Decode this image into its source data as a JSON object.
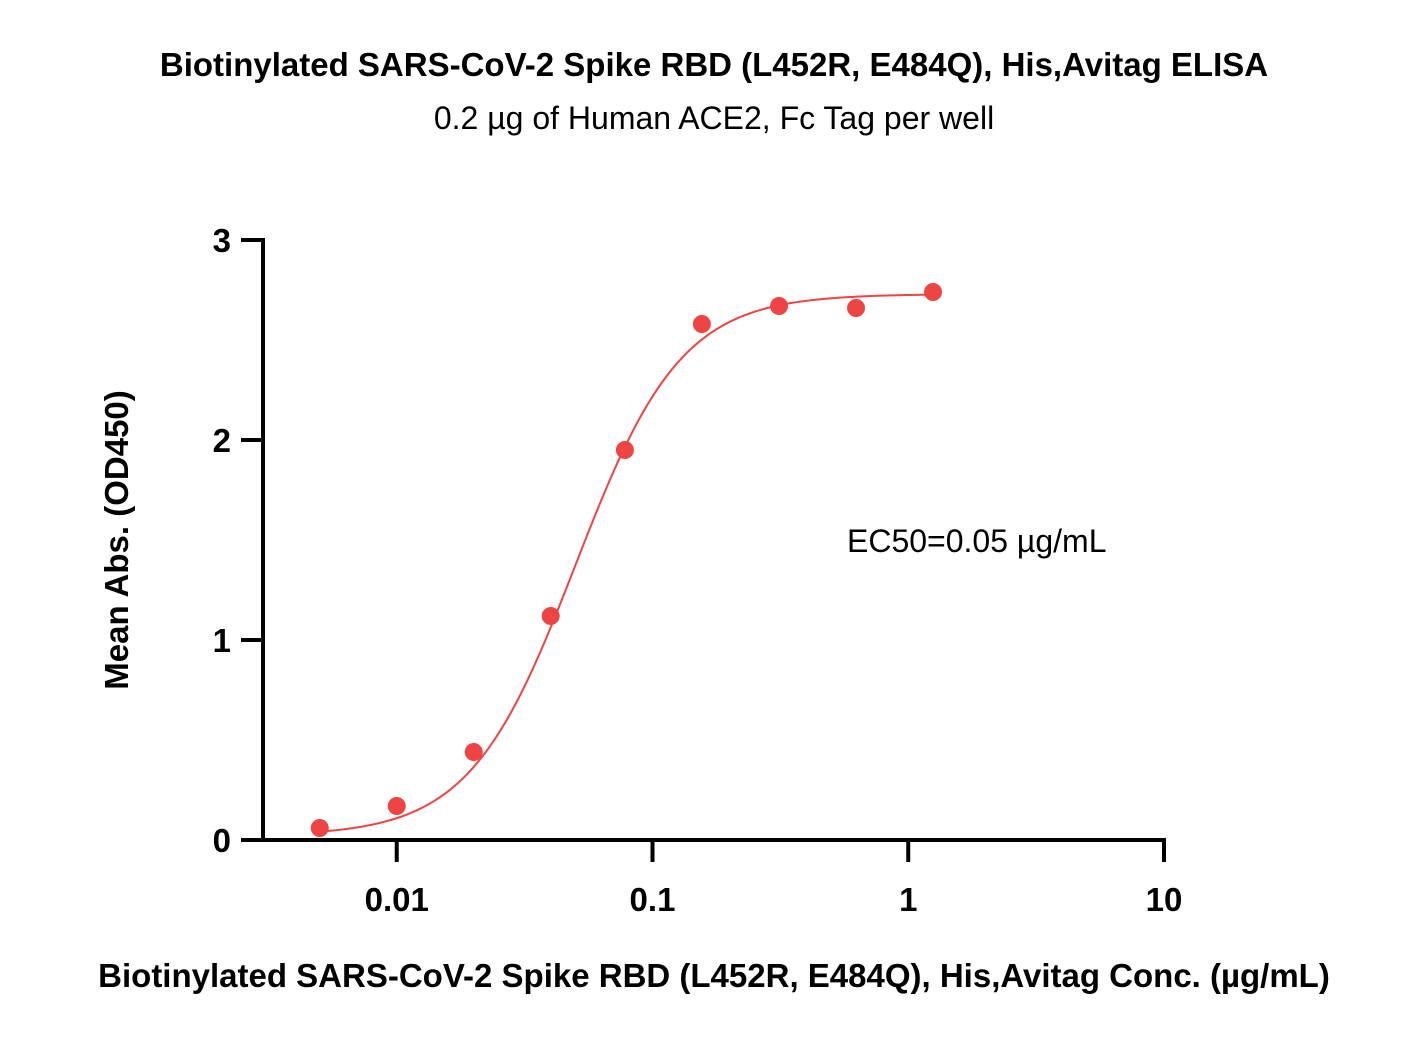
{
  "chart_data": {
    "type": "scatter",
    "title": "Biotinylated SARS-CoV-2 Spike RBD (L452R, E484Q), His,Avitag ELISA",
    "subtitle": "0.2 µg of Human ACE2, Fc Tag per well",
    "xlabel": "Biotinylated SARS-CoV-2 Spike RBD (L452R, E484Q), His,Avitag Conc. (µg/mL)",
    "ylabel": "Mean Abs. (OD450)",
    "xscale": "log",
    "xlim": [
      0.003,
      10
    ],
    "ylim": [
      0,
      3
    ],
    "x_ticks": [
      0.01,
      0.1,
      1,
      10
    ],
    "x_tick_labels": [
      "0.01",
      "0.1",
      "1",
      "10"
    ],
    "y_ticks": [
      0,
      1,
      2,
      3
    ],
    "y_tick_labels": [
      "0",
      "1",
      "2",
      "3"
    ],
    "series": [
      {
        "x": [
          0.005,
          0.01,
          0.02,
          0.04,
          0.078,
          0.156,
          0.3125,
          0.625,
          1.25
        ],
        "y": [
          0.06,
          0.17,
          0.44,
          1.12,
          1.95,
          2.58,
          2.67,
          2.66,
          2.74
        ],
        "color": "#ef4444"
      }
    ],
    "fit": {
      "model": "4PL",
      "bottom": 0.02,
      "top": 2.73,
      "ec50": 0.05,
      "hill": 2.1,
      "x_range": [
        0.005,
        1.25
      ],
      "color": "#ef4444"
    },
    "annotation": "EC50=0.05 µg/mL",
    "grid": false
  }
}
